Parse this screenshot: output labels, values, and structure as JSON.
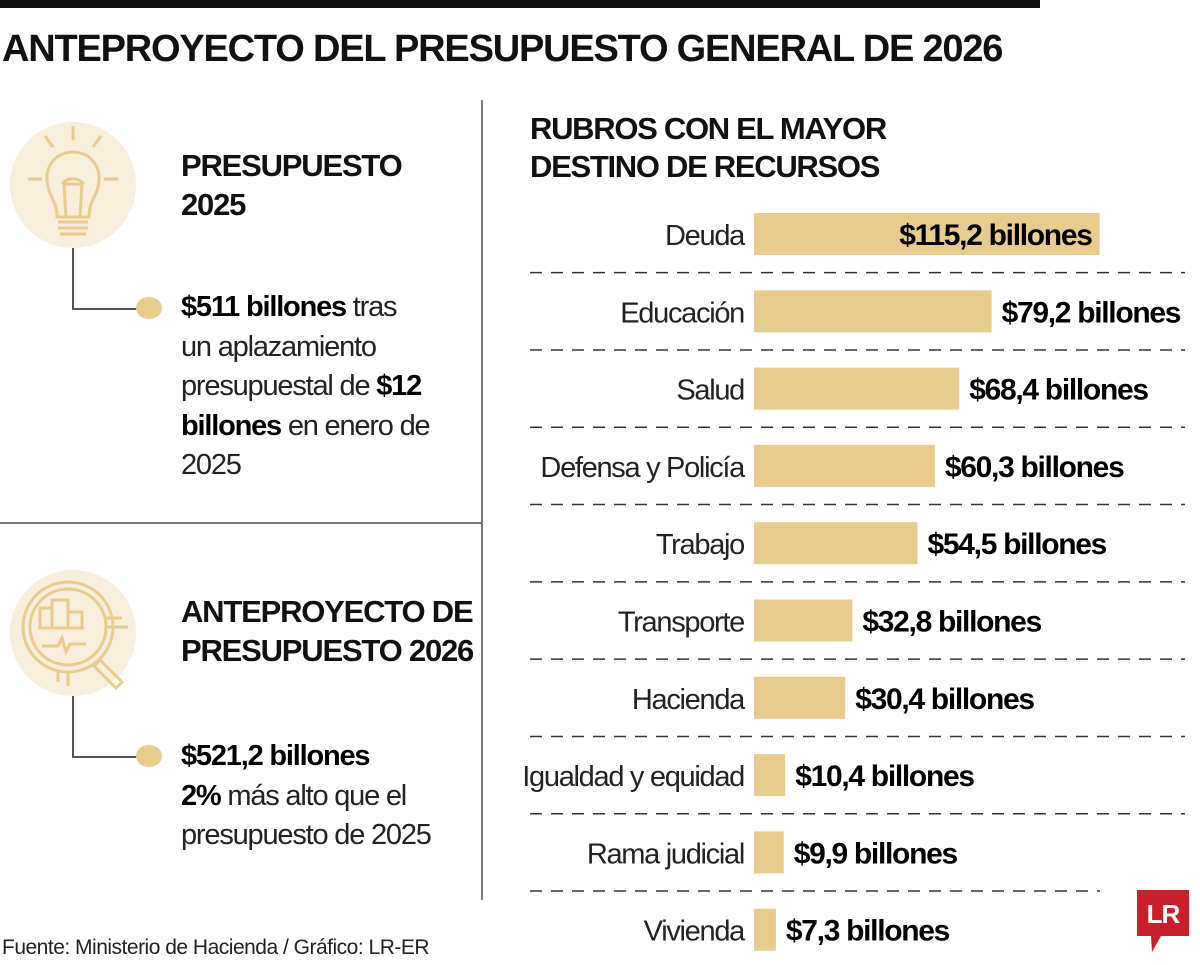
{
  "title": "ANTEPROYECTO DEL PRESUPUESTO GENERAL DE 2026",
  "panel_2025": {
    "heading_line1": "PRESUPUESTO",
    "heading_line2": "2025",
    "icon": "lightbulb-icon",
    "text_bold1": "$511 billones",
    "text1": " tras un aplazamiento presupuestal de ",
    "text_bold2": "$12 billones",
    "text2": " en enero de 2025"
  },
  "panel_2026": {
    "heading_line1": "ANTEPROYECTO DE",
    "heading_line2": "PRESUPUESTO 2026",
    "icon": "magnifier-chart-icon",
    "text_bold1": "$521,2 billones",
    "text_bold2": "2%",
    "text2": " más alto que el presupuesto de 2025"
  },
  "colors": {
    "bar": "#e8cc8d",
    "icon": "#e8cc8d",
    "icon_bg": "#f8eedc",
    "logo": "#c8202a"
  },
  "chart_data": {
    "type": "bar",
    "orientation": "horizontal",
    "title_line1": "RUBROS CON EL MAYOR",
    "title_line2": "DESTINO DE RECURSOS",
    "categories": [
      "Deuda",
      "Educación",
      "Salud",
      "Defensa y Policía",
      "Trabajo",
      "Transporte",
      "Hacienda",
      "Igualdad y equidad",
      "Rama judicial",
      "Vivienda"
    ],
    "values": [
      115.2,
      79.2,
      68.4,
      60.3,
      54.5,
      32.8,
      30.4,
      10.4,
      9.9,
      7.3
    ],
    "labels": [
      "$115,2 billones",
      "$79,2 billones",
      "$68,4 billones",
      "$60,3 billones",
      "$54,5 billones",
      "$32,8 billones",
      "$30,4 billones",
      "$10,4 billones",
      "$9,9 billones",
      "$7,3 billones"
    ],
    "unit": "billones"
  },
  "source": "Fuente: Ministerio de Hacienda / Gráfico: LR-ER",
  "logo": "LR"
}
